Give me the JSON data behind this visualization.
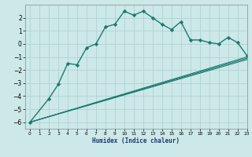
{
  "xlabel": "Humidex (Indice chaleur)",
  "background_color": "#cce8e8",
  "grid_color": "#aacfcf",
  "line_color": "#1a7a6e",
  "line1_x": [
    0,
    2,
    3,
    4,
    5,
    6,
    7,
    8,
    9,
    10,
    11,
    12,
    13,
    14,
    15,
    16,
    17,
    18,
    19,
    20,
    21,
    22,
    23
  ],
  "line1_y": [
    -6.0,
    -4.2,
    -3.1,
    -1.5,
    -1.6,
    -0.3,
    0.0,
    1.3,
    1.5,
    2.5,
    2.2,
    2.5,
    2.0,
    1.5,
    1.1,
    1.7,
    0.3,
    0.3,
    0.1,
    0.0,
    0.5,
    0.1,
    -0.9
  ],
  "line2_x": [
    0,
    23
  ],
  "line2_y": [
    -6.0,
    -1.0
  ],
  "line3_x": [
    0,
    23
  ],
  "line3_y": [
    -6.0,
    -1.1
  ],
  "line4_x": [
    0,
    23
  ],
  "line4_y": [
    -6.0,
    -1.2
  ],
  "ylim": [
    -6.5,
    3.0
  ],
  "xlim": [
    -0.5,
    23
  ],
  "yticks": [
    -6,
    -5,
    -4,
    -3,
    -2,
    -1,
    0,
    1,
    2
  ],
  "xticks": [
    0,
    1,
    2,
    3,
    4,
    5,
    6,
    7,
    8,
    9,
    10,
    11,
    12,
    13,
    14,
    15,
    16,
    17,
    18,
    19,
    20,
    21,
    22,
    23
  ]
}
